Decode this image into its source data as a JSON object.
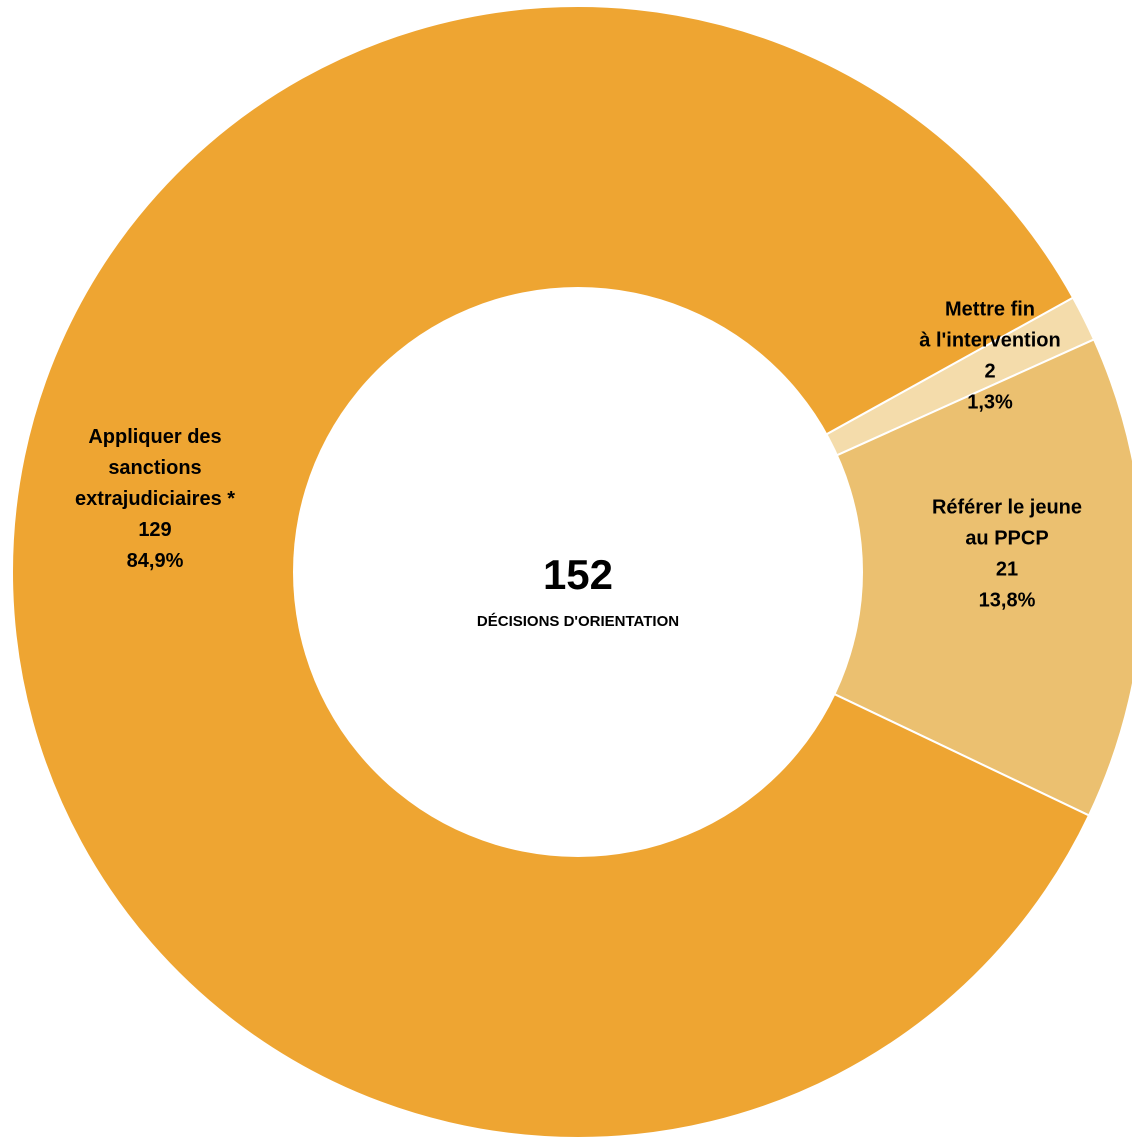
{
  "chart_data": {
    "type": "pie",
    "variant": "donut",
    "total": 152,
    "center_label": "DÉCISIONS D'ORIENTATION",
    "slices": [
      {
        "label_lines": [
          "Mettre fin",
          "à l'intervention"
        ],
        "value": 2,
        "percent": 1.3,
        "value_text": "2",
        "percent_text": "1,3%",
        "color": "#F4DCAB"
      },
      {
        "label_lines": [
          "Référer le jeune",
          "au PPCP"
        ],
        "value": 21,
        "percent": 13.8,
        "value_text": "21",
        "percent_text": "13,8%",
        "color": "#EBC070"
      },
      {
        "label_lines": [
          "Appliquer des",
          "sanctions",
          "extrajudiciaires *"
        ],
        "value": 129,
        "percent": 84.9,
        "value_text": "129",
        "percent_text": "84,9%",
        "color": "#EEA532"
      }
    ]
  }
}
